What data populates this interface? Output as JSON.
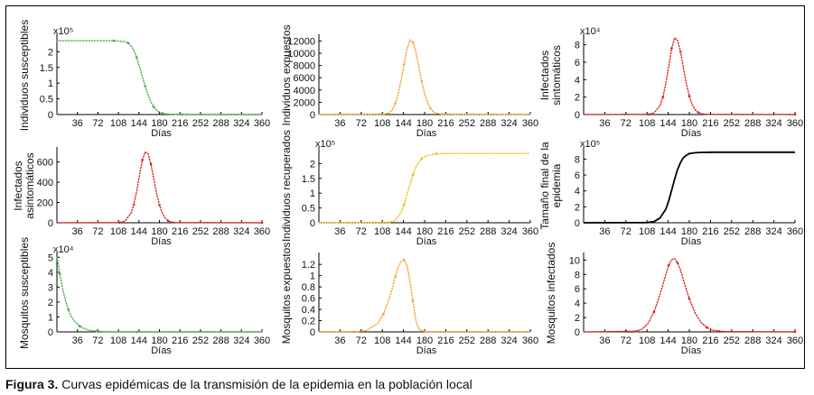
{
  "caption": {
    "label": "Figura 3.",
    "text": " Curvas epidémicas de la transmisión de la epidemia en la población local"
  },
  "chart_data": [
    {
      "type": "line",
      "id": "suceptibles",
      "ylabel": [
        "Individuos susceptibles"
      ],
      "xlabel": "Días",
      "exponent": "x10⁵",
      "yticks": [
        "0",
        "0.5",
        "1",
        "1.5",
        "2"
      ],
      "ytick_values": [
        0,
        0.5,
        1,
        1.5,
        2
      ],
      "ylim": [
        0,
        2.5
      ],
      "xticks": [
        "36",
        "72",
        "108",
        "144",
        "180",
        "216",
        "252",
        "288",
        "324",
        "360"
      ],
      "xlim": [
        0,
        360
      ],
      "color": "#4cae4c",
      "style": "dotted",
      "x": [
        0,
        100,
        110,
        120,
        125,
        130,
        135,
        140,
        145,
        150,
        155,
        160,
        165,
        170,
        175,
        180,
        185,
        190,
        200,
        220,
        360
      ],
      "y": [
        2.35,
        2.35,
        2.34,
        2.32,
        2.28,
        2.2,
        2.05,
        1.82,
        1.52,
        1.2,
        0.9,
        0.62,
        0.4,
        0.24,
        0.14,
        0.07,
        0.04,
        0.02,
        0.01,
        0,
        0
      ]
    },
    {
      "type": "line",
      "id": "expuestos",
      "ylabel": [
        "Individuos expuestos"
      ],
      "xlabel": "Días",
      "exponent": "",
      "yticks": [
        "0",
        "2000",
        "4000",
        "6000",
        "8000",
        "10000",
        "12000"
      ],
      "ytick_values": [
        0,
        2000,
        4000,
        6000,
        8000,
        10000,
        12000
      ],
      "ylim": [
        0,
        12800
      ],
      "xticks": [
        "36",
        "72",
        "108",
        "144",
        "180",
        "216",
        "252",
        "288",
        "324",
        "360"
      ],
      "xlim": [
        0,
        360
      ],
      "color": "#f5a033",
      "style": "dotted",
      "x": [
        0,
        110,
        120,
        125,
        130,
        135,
        140,
        145,
        150,
        155,
        160,
        165,
        170,
        175,
        180,
        185,
        190,
        195,
        200,
        210,
        360
      ],
      "y": [
        0,
        50,
        300,
        800,
        1800,
        3400,
        5600,
        8200,
        10700,
        12200,
        11800,
        10200,
        7800,
        5400,
        3400,
        1900,
        1000,
        450,
        200,
        50,
        0
      ]
    },
    {
      "type": "line",
      "id": "sintomaticos",
      "ylabel": [
        "Infectados",
        "sintomáticos"
      ],
      "xlabel": "Días",
      "exponent": "x10⁴",
      "yticks": [
        "0",
        "2",
        "4",
        "6",
        "8"
      ],
      "ytick_values": [
        0,
        2,
        4,
        6,
        8
      ],
      "ylim": [
        0,
        9
      ],
      "xticks": [
        "36",
        "72",
        "108",
        "144",
        "180",
        "216",
        "252",
        "288",
        "324",
        "360"
      ],
      "xlim": [
        0,
        360
      ],
      "color": "#e02020",
      "style": "dotted",
      "x": [
        0,
        110,
        120,
        130,
        135,
        140,
        145,
        150,
        155,
        160,
        165,
        170,
        175,
        180,
        185,
        190,
        195,
        200,
        210,
        360
      ],
      "y": [
        0,
        0.02,
        0.2,
        1.0,
        2.0,
        3.6,
        5.6,
        7.6,
        8.8,
        8.5,
        7.2,
        5.3,
        3.5,
        2.1,
        1.1,
        0.55,
        0.25,
        0.1,
        0.02,
        0
      ]
    },
    {
      "type": "line",
      "id": "asintomaticos",
      "ylabel": [
        "Infectados",
        "asintomáticos"
      ],
      "xlabel": "Días",
      "exponent": "",
      "yticks": [
        "0",
        "200",
        "400",
        "600"
      ],
      "ytick_values": [
        0,
        200,
        400,
        600
      ],
      "ylim": [
        0,
        730
      ],
      "xticks": [
        "36",
        "72",
        "108",
        "144",
        "180",
        "216",
        "252",
        "288",
        "324",
        "360"
      ],
      "xlim": [
        0,
        360
      ],
      "color": "#e02020",
      "style": "dotted",
      "x": [
        0,
        110,
        120,
        130,
        135,
        140,
        145,
        150,
        155,
        160,
        165,
        170,
        175,
        180,
        185,
        190,
        195,
        200,
        210,
        360
      ],
      "y": [
        0,
        2,
        20,
        95,
        180,
        310,
        470,
        620,
        700,
        680,
        580,
        430,
        290,
        175,
        95,
        45,
        20,
        8,
        2,
        0
      ]
    },
    {
      "type": "line",
      "id": "recuperados",
      "ylabel": [
        "Individuos recuperados"
      ],
      "xlabel": "Días",
      "exponent": "x10⁵",
      "yticks": [
        "0",
        "0.5",
        "1",
        "1.5",
        "2"
      ],
      "ytick_values": [
        0,
        0.5,
        1,
        1.5,
        2
      ],
      "ylim": [
        0,
        2.5
      ],
      "xticks": [
        "36",
        "72",
        "108",
        "144",
        "180",
        "216",
        "252",
        "288",
        "324",
        "360"
      ],
      "xlim": [
        0,
        360
      ],
      "color": "#e8c21b",
      "style": "dotted",
      "x": [
        0,
        120,
        130,
        140,
        145,
        150,
        155,
        160,
        165,
        170,
        175,
        180,
        190,
        200,
        220,
        360
      ],
      "y": [
        0,
        0.01,
        0.08,
        0.35,
        0.62,
        0.95,
        1.3,
        1.62,
        1.88,
        2.05,
        2.17,
        2.24,
        2.3,
        2.33,
        2.34,
        2.34
      ]
    },
    {
      "type": "line",
      "id": "tamano_final",
      "ylabel": [
        "Tamaño final de la",
        "epidemia"
      ],
      "xlabel": "Días",
      "exponent": "x10⁵",
      "yticks": [
        "0",
        "2",
        "4",
        "6",
        "8"
      ],
      "ytick_values": [
        0,
        2,
        4,
        6,
        8
      ],
      "ylim": [
        0,
        9.3
      ],
      "xticks": [
        "36",
        "72",
        "108",
        "144",
        "180",
        "216",
        "252",
        "288",
        "324",
        "360"
      ],
      "xlim": [
        0,
        360
      ],
      "color": "#000000",
      "style": "solid",
      "x": [
        0,
        108,
        120,
        130,
        140,
        145,
        150,
        155,
        160,
        165,
        170,
        175,
        180,
        190,
        200,
        220,
        360
      ],
      "y": [
        0,
        0.02,
        0.15,
        0.6,
        1.7,
        2.8,
        4.1,
        5.5,
        6.7,
        7.6,
        8.2,
        8.5,
        8.7,
        8.8,
        8.85,
        8.87,
        8.87
      ]
    },
    {
      "type": "line",
      "id": "mosquitos_susceptibles",
      "ylabel": [
        "Mosquitos susceptibles"
      ],
      "xlabel": "Días",
      "exponent": "x10⁴",
      "yticks": [
        "0",
        "1",
        "2",
        "3",
        "4",
        "5"
      ],
      "ytick_values": [
        0,
        1,
        2,
        3,
        4,
        5
      ],
      "ylim": [
        0,
        5.2
      ],
      "xticks": [
        "36",
        "72",
        "108",
        "144",
        "180",
        "216",
        "252",
        "288",
        "324",
        "360"
      ],
      "xlim": [
        0,
        360
      ],
      "color": "#4cae4c",
      "style": "dotted",
      "x": [
        0,
        5,
        10,
        15,
        20,
        25,
        30,
        40,
        50,
        60,
        70,
        80,
        100,
        140,
        360
      ],
      "y": [
        5,
        3.9,
        2.9,
        2.1,
        1.5,
        1.05,
        0.75,
        0.38,
        0.18,
        0.09,
        0.04,
        0.02,
        0,
        0,
        0
      ]
    },
    {
      "type": "line",
      "id": "mosquitos_expuestos",
      "ylabel": [
        "Mosquitos expuestos"
      ],
      "xlabel": "Días",
      "exponent": "",
      "yticks": [
        "0",
        "0.2",
        "0.4",
        "0.6",
        "0.8",
        "1",
        "1.2"
      ],
      "ytick_values": [
        0,
        0.2,
        0.4,
        0.6,
        0.8,
        1,
        1.2
      ],
      "ylim": [
        0,
        1.38
      ],
      "xticks": [
        "36",
        "72",
        "108",
        "144",
        "180",
        "216",
        "252",
        "288",
        "324",
        "360"
      ],
      "xlim": [
        0,
        360
      ],
      "color": "#f5a033",
      "style": "dotted",
      "x": [
        0,
        60,
        80,
        100,
        110,
        120,
        125,
        130,
        135,
        140,
        145,
        150,
        155,
        160,
        165,
        170,
        180,
        360
      ],
      "y": [
        0,
        0,
        0.02,
        0.15,
        0.32,
        0.6,
        0.78,
        0.98,
        1.15,
        1.25,
        1.28,
        1.18,
        0.9,
        0.55,
        0.2,
        0.05,
        0,
        0
      ]
    },
    {
      "type": "line",
      "id": "mosquitos_infectados",
      "ylabel": [
        "Mosquitos infectados"
      ],
      "xlabel": "Días",
      "exponent": "",
      "yticks": [
        "0",
        "2",
        "4",
        "6",
        "8",
        "10"
      ],
      "ytick_values": [
        0,
        2,
        4,
        6,
        8,
        10
      ],
      "ylim": [
        0,
        10.8
      ],
      "xticks": [
        "36",
        "72",
        "108",
        "144",
        "180",
        "216",
        "252",
        "288",
        "324",
        "360"
      ],
      "xlim": [
        0,
        360
      ],
      "color": "#e02020",
      "style": "dotted",
      "x": [
        0,
        90,
        100,
        110,
        120,
        130,
        140,
        145,
        150,
        155,
        160,
        165,
        170,
        180,
        190,
        200,
        210,
        220,
        240,
        360
      ],
      "y": [
        0,
        0.1,
        0.4,
        1.2,
        2.8,
        5.2,
        8.0,
        9.3,
        10.1,
        10.2,
        9.6,
        8.6,
        7.2,
        4.6,
        2.6,
        1.3,
        0.6,
        0.25,
        0.05,
        0
      ]
    }
  ]
}
